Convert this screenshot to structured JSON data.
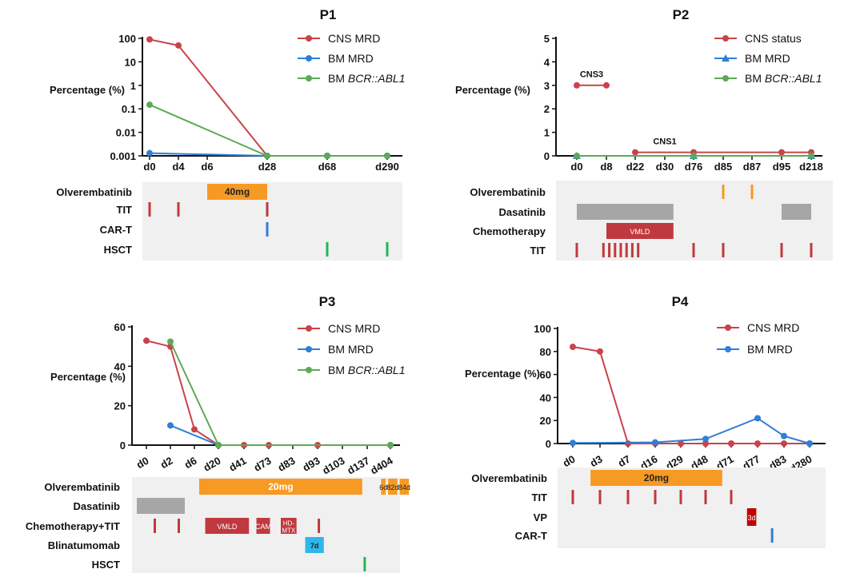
{
  "colors": {
    "cns": "#c9434b",
    "bm": "#2f7ed8",
    "abl": "#5daa55",
    "orange": "#f79a23",
    "gray": "#a6a6a6",
    "red_bar": "#c0393f",
    "blue_bar": "#2fb6ea",
    "green_tick": "#1db954",
    "dark_red": "#c00000",
    "track_bg": "#f0f0f0"
  },
  "chart_data": [
    {
      "panel": "P1",
      "type": "line",
      "title": "P1",
      "ylabel": "Percentage (%)",
      "yscale": "log",
      "ylim": [
        0.001,
        100
      ],
      "yticks": [
        {
          "v": 100,
          "label": "100"
        },
        {
          "v": 10,
          "label": "10"
        },
        {
          "v": 1,
          "label": "1"
        },
        {
          "v": 0.1,
          "label": "0.1"
        },
        {
          "v": 0.01,
          "label": "0.01"
        },
        {
          "v": 0.001,
          "label": "0.001"
        }
      ],
      "categories": [
        "d0",
        "d4",
        "d6",
        "d28",
        "d68",
        "d290"
      ],
      "series": [
        {
          "name": "CNS MRD",
          "legend": [
            "CNS MRD"
          ],
          "color_key": "cns",
          "marker": "circle",
          "points": [
            [
              0,
              90
            ],
            [
              1,
              50
            ],
            [
              3,
              0.001
            ],
            [
              4,
              0.001
            ],
            [
              5,
              0.001
            ]
          ]
        },
        {
          "name": "BM MRD",
          "legend": [
            "BM MRD"
          ],
          "color_key": "bm",
          "marker": "circle",
          "points": [
            [
              0,
              0.0013
            ],
            [
              3,
              0.001
            ],
            [
              4,
              0.001
            ],
            [
              5,
              0.001
            ]
          ]
        },
        {
          "name": "BM BCR::ABL1",
          "legend": [
            "BM ",
            "BCR::ABL1"
          ],
          "color_key": "abl",
          "marker": "circle",
          "points": [
            [
              0,
              0.15
            ],
            [
              3,
              0.001
            ],
            [
              4,
              0.001
            ],
            [
              5,
              0.001
            ]
          ]
        }
      ],
      "annotations": [],
      "treatment_rows": [
        {
          "label": "Olverembatinib",
          "items": [
            {
              "kind": "bar",
              "start": 2,
              "end": 3,
              "color_key": "orange",
              "text": "40mg",
              "text_color": "#222222"
            }
          ]
        },
        {
          "label": "TIT",
          "items": [
            {
              "kind": "tick",
              "at": 0,
              "color_key": "red_bar"
            },
            {
              "kind": "tick",
              "at": 1,
              "color_key": "red_bar"
            },
            {
              "kind": "tick",
              "at": 3,
              "color_key": "red_bar"
            }
          ]
        },
        {
          "label": "CAR-T",
          "items": [
            {
              "kind": "tick",
              "at": 3,
              "color_key": "bm"
            }
          ]
        },
        {
          "label": "HSCT",
          "items": [
            {
              "kind": "tick",
              "at": 4,
              "color_key": "green_tick"
            },
            {
              "kind": "tick",
              "at": 5,
              "color_key": "green_tick"
            }
          ]
        }
      ]
    },
    {
      "panel": "P2",
      "type": "line",
      "title": "P2",
      "ylabel": "Percentage (%)",
      "yscale": "linear",
      "ylim": [
        0,
        5
      ],
      "yticks": [
        {
          "v": 0,
          "label": "0"
        },
        {
          "v": 1,
          "label": "1"
        },
        {
          "v": 2,
          "label": "2"
        },
        {
          "v": 3,
          "label": "3"
        },
        {
          "v": 4,
          "label": "4"
        },
        {
          "v": 5,
          "label": "5"
        }
      ],
      "categories": [
        "d0",
        "d8",
        "d22",
        "d30",
        "d76",
        "d85",
        "d87",
        "d95",
        "d218"
      ],
      "series": [
        {
          "name": "CNS status",
          "legend": [
            "CNS status"
          ],
          "color_key": "cns",
          "marker": "circle",
          "segments": [
            [
              [
                0,
                3
              ],
              [
                1,
                3
              ]
            ],
            [
              [
                2,
                0.15
              ],
              [
                4,
                0.15
              ],
              [
                7,
                0.15
              ],
              [
                8,
                0.15
              ]
            ]
          ],
          "points": [
            [
              0,
              3
            ],
            [
              1,
              3
            ],
            [
              2,
              0.15
            ],
            [
              4,
              0.15
            ],
            [
              7,
              0.15
            ],
            [
              8,
              0.15
            ]
          ]
        },
        {
          "name": "BM MRD",
          "legend": [
            "BM MRD"
          ],
          "color_key": "bm",
          "marker": "triangle",
          "points": [
            [
              0,
              0
            ],
            [
              4,
              0
            ],
            [
              8,
              0
            ]
          ]
        },
        {
          "name": "BM BCR::ABL1",
          "legend": [
            "BM ",
            "BCR::ABL1"
          ],
          "color_key": "abl",
          "marker": "circle",
          "points": [
            [
              0,
              0
            ],
            [
              4,
              0
            ],
            [
              8,
              0
            ]
          ]
        }
      ],
      "annotations": [
        {
          "text": "CNS3",
          "at": 0.5,
          "v": 3.35
        },
        {
          "text": "CNS1",
          "at": 3,
          "v": 0.5
        }
      ],
      "treatment_rows": [
        {
          "label": "Olverembatinib",
          "items": [
            {
              "kind": "tick",
              "at": 5,
              "color_key": "orange"
            },
            {
              "kind": "tick",
              "at": 6,
              "color_key": "orange"
            }
          ]
        },
        {
          "label": "Dasatinib",
          "items": [
            {
              "kind": "bar",
              "start": 0,
              "end": 3.3,
              "color_key": "gray",
              "text": "",
              "text_color": "#ffffff"
            },
            {
              "kind": "bar",
              "start": 7,
              "end": 8,
              "color_key": "gray",
              "text": "",
              "text_color": "#ffffff"
            }
          ]
        },
        {
          "label": "Chemotherapy",
          "items": [
            {
              "kind": "bar",
              "start": 1,
              "end": 3.3,
              "color_key": "red_bar",
              "text": "VMLD",
              "text_color": "#ffffff"
            }
          ]
        },
        {
          "label": "TIT",
          "items": [
            {
              "kind": "tick",
              "at": 0,
              "color_key": "red_bar"
            },
            {
              "kind": "tick",
              "at": 0.9,
              "color_key": "red_bar"
            },
            {
              "kind": "tick",
              "at": 1.1,
              "color_key": "red_bar"
            },
            {
              "kind": "tick",
              "at": 1.3,
              "color_key": "red_bar"
            },
            {
              "kind": "tick",
              "at": 1.5,
              "color_key": "red_bar"
            },
            {
              "kind": "tick",
              "at": 1.7,
              "color_key": "red_bar"
            },
            {
              "kind": "tick",
              "at": 1.9,
              "color_key": "red_bar"
            },
            {
              "kind": "tick",
              "at": 2.1,
              "color_key": "red_bar"
            },
            {
              "kind": "tick",
              "at": 4,
              "color_key": "red_bar"
            },
            {
              "kind": "tick",
              "at": 5,
              "color_key": "red_bar"
            },
            {
              "kind": "tick",
              "at": 7,
              "color_key": "red_bar"
            },
            {
              "kind": "tick",
              "at": 8,
              "color_key": "red_bar"
            }
          ]
        }
      ]
    },
    {
      "panel": "P3",
      "type": "line",
      "title": "P3",
      "ylabel": "Percentage (%)",
      "yscale": "linear",
      "ylim": [
        0,
        60
      ],
      "yticks": [
        {
          "v": 0,
          "label": "0"
        },
        {
          "v": 20,
          "label": "20"
        },
        {
          "v": 40,
          "label": "40"
        },
        {
          "v": 60,
          "label": "60"
        }
      ],
      "categories": [
        "d0",
        "d2",
        "d6",
        "d20",
        "d41",
        "d73",
        "d83",
        "d93",
        "d103",
        "d137",
        "d404"
      ],
      "series": [
        {
          "name": "CNS MRD",
          "legend": [
            "CNS MRD"
          ],
          "color_key": "cns",
          "marker": "circle",
          "points": [
            [
              0,
              53
            ],
            [
              1,
              50
            ],
            [
              2,
              8
            ],
            [
              3,
              0
            ],
            [
              4,
              0
            ],
            [
              5,
              0
            ],
            [
              7,
              0
            ]
          ]
        },
        {
          "name": "BM MRD",
          "legend": [
            "BM MRD"
          ],
          "color_key": "bm",
          "marker": "circle",
          "points": [
            [
              1,
              10
            ],
            [
              3,
              0
            ],
            [
              10,
              0
            ]
          ]
        },
        {
          "name": "BM BCR::ABL1",
          "legend": [
            "BM ",
            "BCR::ABL1"
          ],
          "color_key": "abl",
          "marker": "circle",
          "points": [
            [
              1,
              52.5
            ],
            [
              3,
              0
            ],
            [
              10,
              0
            ]
          ]
        }
      ],
      "annotations": [],
      "treatment_rows": [
        {
          "label": "Olverembatinib",
          "items": [
            {
              "kind": "bar",
              "start": 2.2,
              "end": 8.8,
              "color_key": "orange",
              "text": "20mg",
              "text_color": "#ffffff"
            },
            {
              "kind": "bar",
              "start": 9.6,
              "end": 9.8,
              "color_key": "orange",
              "text": "6d",
              "text_color": "#222222"
            },
            {
              "kind": "bar",
              "start": 9.9,
              "end": 10.3,
              "color_key": "orange",
              "text": "82d",
              "text_color": "#222222"
            },
            {
              "kind": "bar",
              "start": 10.4,
              "end": 10.8,
              "color_key": "orange",
              "text": "84d",
              "text_color": "#222222"
            }
          ]
        },
        {
          "label": "Dasatinib",
          "items": [
            {
              "kind": "bar",
              "start": -0.4,
              "end": 1.6,
              "color_key": "gray",
              "text": "",
              "text_color": "#ffffff"
            }
          ]
        },
        {
          "label": "Chemotherapy+TIT",
          "items": [
            {
              "kind": "tick",
              "at": 0.35,
              "color_key": "red_bar"
            },
            {
              "kind": "tick",
              "at": 1.35,
              "color_key": "red_bar"
            },
            {
              "kind": "bar",
              "start": 2.45,
              "end": 4.2,
              "color_key": "red_bar",
              "text": "VMLD",
              "text_color": "#ffffff"
            },
            {
              "kind": "bar",
              "start": 4.5,
              "end": 5.05,
              "color_key": "red_bar",
              "text": "CAM",
              "text_color": "#ffffff"
            },
            {
              "kind": "bar",
              "start": 5.5,
              "end": 6.15,
              "color_key": "red_bar",
              "text": "HD-\nMTX",
              "text_color": "#ffffff"
            },
            {
              "kind": "tick",
              "at": 7.05,
              "color_key": "red_bar"
            }
          ]
        },
        {
          "label": "Blinatumomab",
          "items": [
            {
              "kind": "bar",
              "start": 6.5,
              "end": 7.25,
              "color_key": "blue_bar",
              "text": "7d",
              "text_color": "#222222"
            }
          ]
        },
        {
          "label": "HSCT",
          "items": [
            {
              "kind": "tick",
              "at": 8.9,
              "color_key": "green_tick"
            }
          ]
        }
      ]
    },
    {
      "panel": "P4",
      "type": "line",
      "title": "P4",
      "ylabel": "Percentage (%)",
      "yscale": "linear",
      "ylim": [
        0,
        100
      ],
      "yticks": [
        {
          "v": 0,
          "label": "0"
        },
        {
          "v": 20,
          "label": "20"
        },
        {
          "v": 40,
          "label": "40"
        },
        {
          "v": 60,
          "label": "60"
        },
        {
          "v": 80,
          "label": "80"
        },
        {
          "v": 100,
          "label": "100"
        }
      ],
      "categories": [
        "d0",
        "d3",
        "d7",
        "d16",
        "d29",
        "d48",
        "d71",
        "d77",
        "d83",
        "d280"
      ],
      "series": [
        {
          "name": "CNS MRD",
          "legend": [
            "CNS MRD"
          ],
          "color_key": "cns",
          "marker": "circle",
          "points": [
            [
              0,
              84
            ],
            [
              1,
              80
            ],
            [
              2,
              0
            ],
            [
              3,
              0
            ],
            [
              4,
              0
            ],
            [
              5,
              0
            ],
            [
              6,
              0
            ],
            [
              7,
              0
            ],
            [
              8,
              0
            ],
            [
              9,
              0
            ]
          ]
        },
        {
          "name": "BM MRD",
          "legend": [
            "BM MRD"
          ],
          "color_key": "bm",
          "marker": "circle",
          "points": [
            [
              0,
              0.5
            ],
            [
              3,
              1
            ],
            [
              5,
              4
            ],
            [
              7,
              22
            ],
            [
              8,
              6.5
            ],
            [
              9,
              0
            ]
          ]
        }
      ],
      "annotations": [],
      "treatment_rows": [
        {
          "label": "Olverembatinib",
          "items": [
            {
              "kind": "bar",
              "start": 0.65,
              "end": 5.65,
              "color_key": "orange",
              "text": "20mg",
              "text_color": "#222222"
            }
          ]
        },
        {
          "label": "TIT",
          "items": [
            {
              "kind": "tick",
              "at": 0,
              "color_key": "red_bar"
            },
            {
              "kind": "tick",
              "at": 1,
              "color_key": "red_bar"
            },
            {
              "kind": "tick",
              "at": 2,
              "color_key": "red_bar"
            },
            {
              "kind": "tick",
              "at": 3,
              "color_key": "red_bar"
            },
            {
              "kind": "tick",
              "at": 4,
              "color_key": "red_bar"
            },
            {
              "kind": "tick",
              "at": 5,
              "color_key": "red_bar"
            },
            {
              "kind": "tick",
              "at": 6,
              "color_key": "red_bar"
            }
          ]
        },
        {
          "label": "VP",
          "items": [
            {
              "kind": "bar",
              "start": 6.6,
              "end": 6.95,
              "color_key": "dark_red",
              "text": "3d",
              "text_color": "#ffffff",
              "tall": true
            }
          ]
        },
        {
          "label": "CAR-T",
          "items": [
            {
              "kind": "tick",
              "at": 7.55,
              "color_key": "bm"
            }
          ]
        }
      ]
    }
  ]
}
